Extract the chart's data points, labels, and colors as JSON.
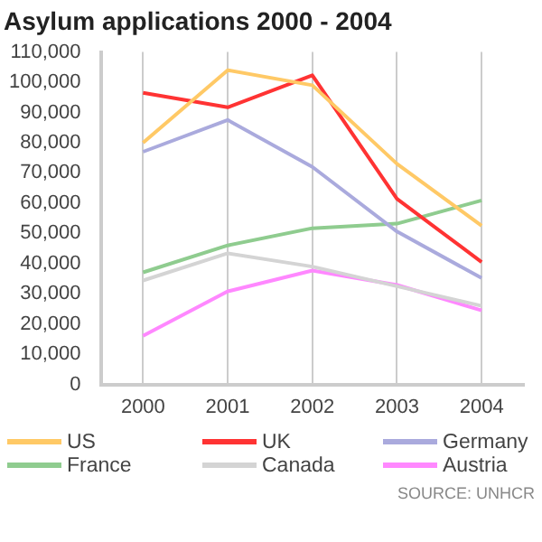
{
  "chart_data": {
    "type": "line",
    "title": "Asylum applications 2000 - 2004",
    "categories": [
      "2000",
      "2001",
      "2002",
      "2003",
      "2004"
    ],
    "series": [
      {
        "name": "US",
        "color": "#ffc966",
        "values": [
          80000,
          104000,
          99000,
          73000,
          52500
        ]
      },
      {
        "name": "UK",
        "color": "#ff3333",
        "values": [
          96500,
          91700,
          102300,
          61400,
          40500
        ]
      },
      {
        "name": "Germany",
        "color": "#aaaadd",
        "values": [
          77000,
          87500,
          72000,
          50600,
          35200
        ]
      },
      {
        "name": "France",
        "color": "#8fcc8f",
        "values": [
          37100,
          46000,
          51700,
          53200,
          60900
        ]
      },
      {
        "name": "Canada",
        "color": "#d4d4d4",
        "values": [
          34400,
          43400,
          39000,
          32500,
          26000
        ]
      },
      {
        "name": "Austria",
        "color": "#ff88ff",
        "values": [
          16100,
          30800,
          37700,
          32900,
          24500
        ]
      }
    ],
    "ylim": [
      0,
      110000
    ],
    "yticks": [
      0,
      {
        "value": 10000,
        "label": "10,000"
      },
      {
        "value": 20000,
        "label": "20,000"
      },
      {
        "value": 30000,
        "label": "30,000"
      },
      {
        "value": 40000,
        "label": "40,000"
      },
      {
        "value": 50000,
        "label": "50,000"
      },
      {
        "value": 60000,
        "label": "60,000"
      },
      {
        "value": 70000,
        "label": "70,000"
      },
      {
        "value": 80000,
        "label": "80,000"
      },
      {
        "value": 90000,
        "label": "90,000"
      },
      {
        "value": 100000,
        "label": "100,000"
      },
      {
        "value": 110000,
        "label": "110,000"
      }
    ],
    "grid": "x",
    "legend": "bottom",
    "marker": "none",
    "line_style": "solid",
    "annotations": [
      "SOURCE: UNHCR"
    ]
  }
}
